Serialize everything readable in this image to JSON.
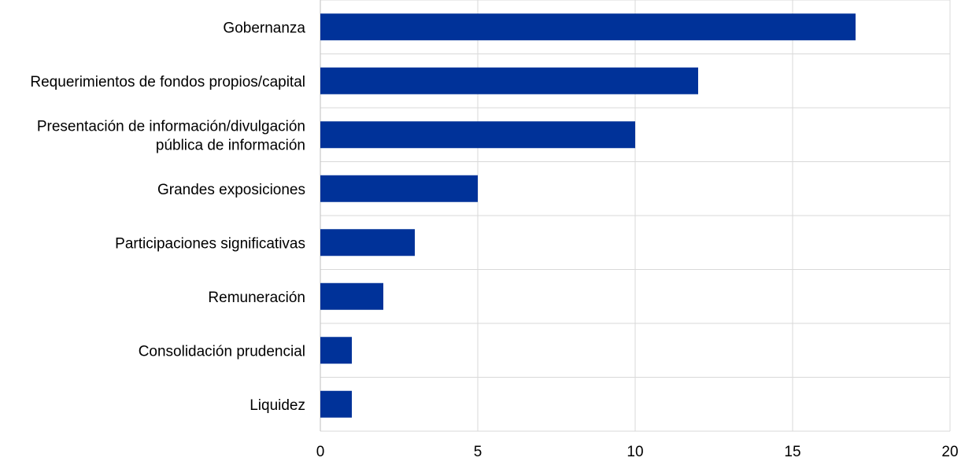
{
  "chart_data": {
    "type": "bar",
    "orientation": "horizontal",
    "categories": [
      [
        "Gobernanza"
      ],
      [
        "Requerimientos de fondos propios/capital"
      ],
      [
        "Presentación de información/divulgación",
        "pública de información"
      ],
      [
        "Grandes exposiciones"
      ],
      [
        "Participaciones significativas"
      ],
      [
        "Remuneración"
      ],
      [
        "Consolidación prudencial"
      ],
      [
        "Liquidez"
      ]
    ],
    "values": [
      17,
      12,
      10,
      5,
      3,
      2,
      1,
      1
    ],
    "xlim": [
      0,
      20
    ],
    "xticks": [
      "0",
      "5",
      "10",
      "15",
      "20"
    ],
    "title": "",
    "xlabel": "",
    "ylabel": "",
    "grid": true,
    "legend": "none",
    "bar_color": "#003299",
    "grid_color": "#d9d9d9"
  }
}
